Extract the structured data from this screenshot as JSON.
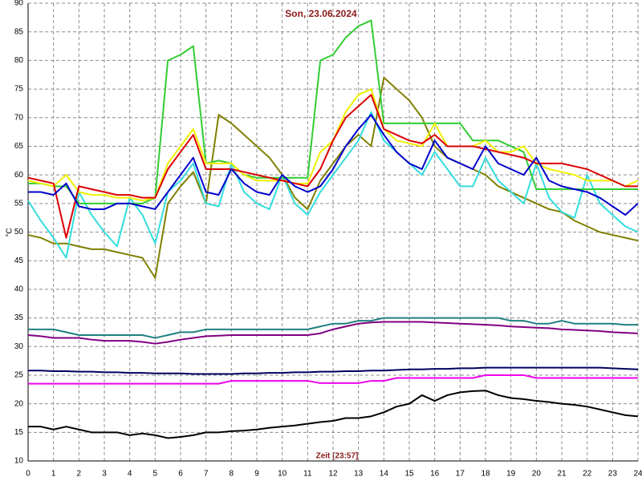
{
  "chart_data": {
    "type": "line",
    "title": "Son, 23.06.2024",
    "x_label": "Zeit [23:57]",
    "y_label": "°C",
    "x": [
      0,
      0.5,
      1,
      1.5,
      2,
      2.5,
      3,
      3.5,
      4,
      4.5,
      5,
      5.5,
      6,
      6.5,
      7,
      7.5,
      8,
      8.5,
      9,
      9.5,
      10,
      10.5,
      11,
      11.5,
      12,
      12.5,
      13,
      13.5,
      14,
      14.5,
      15,
      15.5,
      16,
      16.5,
      17,
      17.5,
      18,
      18.5,
      19,
      19.5,
      20,
      20.5,
      21,
      21.5,
      22,
      22.5,
      23,
      23.5,
      24
    ],
    "xlim": [
      0,
      24
    ],
    "xticks": [
      0,
      1,
      2,
      3,
      4,
      5,
      6,
      7,
      8,
      9,
      10,
      11,
      12,
      13,
      14,
      15,
      16,
      17,
      18,
      19,
      20,
      21,
      22,
      23,
      24
    ],
    "ylim": [
      10,
      90
    ],
    "yticks": [
      10,
      15,
      20,
      25,
      30,
      35,
      40,
      45,
      50,
      55,
      60,
      65,
      70,
      75,
      80,
      85,
      90
    ],
    "grid": true,
    "series": [
      {
        "color": "#808000",
        "values": [
          49.5,
          49,
          48,
          48,
          47.5,
          47,
          47,
          46.5,
          46,
          45.5,
          42,
          55,
          58,
          60.5,
          55,
          70.5,
          69,
          67,
          65,
          63,
          60,
          56,
          54,
          59,
          62,
          65,
          67,
          65,
          77,
          75,
          73,
          70,
          65,
          63,
          62,
          61,
          60,
          58,
          57,
          56,
          55,
          54,
          53.5,
          52,
          51,
          50,
          49.5,
          49,
          48.5
        ]
      },
      {
        "color": "#33dddd",
        "values": [
          55.5,
          52,
          49,
          45.5,
          57,
          53,
          50,
          47.5,
          56,
          53,
          48,
          57,
          59,
          62,
          55,
          54.5,
          62,
          57,
          55,
          54,
          60,
          55,
          53,
          57,
          60,
          63,
          66,
          71,
          66,
          64,
          62,
          60,
          64,
          61,
          58,
          58,
          63,
          59,
          57,
          55,
          62,
          56,
          53.5,
          52.5,
          60,
          55,
          53,
          51,
          50
        ]
      },
      {
        "color": "#33cc33",
        "values": [
          58.5,
          58.5,
          58,
          58,
          55,
          55,
          55,
          55,
          55,
          55,
          56,
          80,
          81,
          82.5,
          62,
          62.5,
          62,
          60,
          59.5,
          59.5,
          59.5,
          59.5,
          59.5,
          80,
          81,
          84,
          86,
          87,
          69,
          69,
          69,
          69,
          69,
          69,
          69,
          66,
          66,
          66,
          65,
          64,
          57.5,
          57.5,
          57.5,
          57.5,
          57.5,
          57.5,
          57.5,
          57.5,
          57.5
        ]
      },
      {
        "color": "#f0f000",
        "values": [
          59,
          58.5,
          58,
          60,
          57,
          56.5,
          56.5,
          56,
          56,
          55.5,
          56,
          62,
          65,
          68,
          62,
          62,
          62,
          60,
          59,
          59,
          59,
          58.5,
          58.5,
          64,
          66,
          71,
          74,
          75,
          68,
          66,
          65.5,
          65,
          69,
          65,
          65,
          65,
          66,
          64,
          64,
          65,
          62,
          61,
          60.5,
          60,
          59,
          59,
          59,
          58,
          59
        ]
      },
      {
        "color": "#dd0000",
        "values": [
          59.5,
          59,
          58.5,
          49,
          58,
          57.5,
          57,
          56.5,
          56.5,
          56,
          56,
          61,
          64,
          67,
          61,
          61,
          61,
          60.5,
          60,
          59.5,
          59,
          58.5,
          58,
          61,
          66,
          70,
          72,
          74,
          68,
          67,
          66,
          65.5,
          67,
          65,
          65,
          65,
          64.5,
          64,
          63.5,
          63,
          62,
          62,
          62,
          61.5,
          61,
          60,
          59,
          58,
          58
        ]
      },
      {
        "color": "#0000cc",
        "values": [
          57,
          57,
          56.5,
          58.5,
          54.5,
          54,
          54,
          55,
          55,
          54.5,
          54,
          57,
          60,
          63,
          57,
          56.5,
          61,
          58.5,
          57,
          56.5,
          60,
          58,
          57,
          58,
          61,
          65,
          68,
          70.5,
          67,
          64,
          62,
          61,
          66,
          63,
          62,
          61,
          65,
          62,
          61,
          60,
          63,
          59,
          58,
          57.5,
          57,
          56,
          54.5,
          53,
          55
        ]
      },
      {
        "color": "#208080",
        "values": [
          33,
          33,
          33,
          32.5,
          32,
          32,
          32,
          32,
          32,
          32,
          31.5,
          32,
          32.5,
          32.5,
          33,
          33,
          33,
          33,
          33,
          33,
          33,
          33,
          33,
          33.5,
          34,
          34,
          34.5,
          34.5,
          35,
          35,
          35,
          35,
          35,
          35,
          35,
          35,
          35,
          35,
          34.5,
          34.5,
          34,
          34,
          34.5,
          34,
          34,
          34,
          34,
          33.8,
          33.8
        ]
      },
      {
        "color": "#800080",
        "values": [
          32,
          31.8,
          31.5,
          31.5,
          31.5,
          31.2,
          31,
          31,
          31,
          30.8,
          30.5,
          30.8,
          31.2,
          31.5,
          31.8,
          31.9,
          32,
          32,
          32,
          32,
          32,
          32,
          32,
          32.3,
          33,
          33.5,
          34,
          34.2,
          34.3,
          34.3,
          34.3,
          34.3,
          34.2,
          34.1,
          34,
          33.9,
          33.8,
          33.7,
          33.5,
          33.4,
          33.3,
          33.2,
          33,
          32.9,
          32.8,
          32.7,
          32.5,
          32.4,
          32.3
        ]
      },
      {
        "color": "#000060",
        "values": [
          25.8,
          25.8,
          25.7,
          25.7,
          25.6,
          25.6,
          25.5,
          25.5,
          25.4,
          25.4,
          25.3,
          25.3,
          25.3,
          25.2,
          25.2,
          25.2,
          25.2,
          25.3,
          25.3,
          25.4,
          25.4,
          25.5,
          25.5,
          25.6,
          25.6,
          25.7,
          25.7,
          25.8,
          25.8,
          25.9,
          26,
          26,
          26.1,
          26.1,
          26.2,
          26.2,
          26.3,
          26.3,
          26.3,
          26.3,
          26.3,
          26.3,
          26.3,
          26.3,
          26.3,
          26.3,
          26.2,
          26.1,
          26
        ]
      },
      {
        "color": "#ee00ee",
        "values": [
          23.5,
          23.5,
          23.5,
          23.5,
          23.5,
          23.5,
          23.5,
          23.5,
          23.5,
          23.5,
          23.5,
          23.5,
          23.5,
          23.5,
          23.5,
          23.5,
          24,
          24,
          24,
          24,
          24,
          24,
          24,
          23.6,
          23.6,
          23.6,
          23.6,
          24,
          24,
          24.5,
          24.5,
          24.5,
          24.5,
          24.5,
          24.5,
          24.5,
          25,
          25,
          25,
          25,
          24.5,
          24.5,
          24.5,
          24.5,
          24.5,
          24.5,
          24.5,
          24.5,
          24.5
        ]
      },
      {
        "color": "#000000",
        "values": [
          16,
          16,
          15.5,
          16,
          15.5,
          15,
          15,
          15,
          14.5,
          14.8,
          14.5,
          14,
          14.2,
          14.5,
          15,
          15,
          15.2,
          15.3,
          15.5,
          15.8,
          16,
          16.2,
          16.5,
          16.8,
          17,
          17.5,
          17.5,
          17.8,
          18.5,
          19.5,
          20,
          21.5,
          20.5,
          21.5,
          22,
          22.2,
          22.3,
          21.5,
          21,
          20.8,
          20.5,
          20.3,
          20,
          19.8,
          19.5,
          19,
          18.5,
          18,
          17.8
        ]
      }
    ]
  }
}
